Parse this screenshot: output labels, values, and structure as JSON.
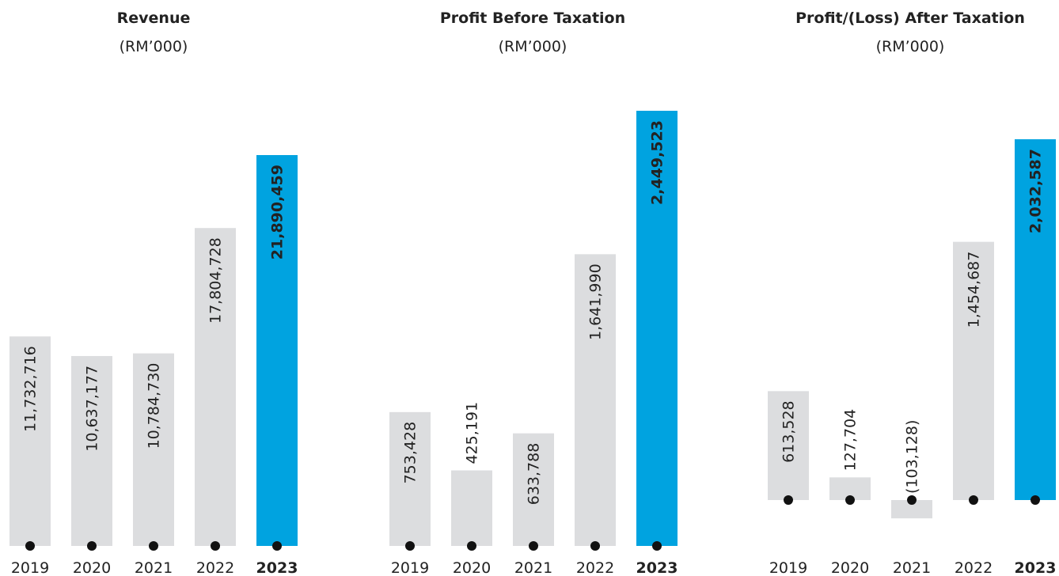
{
  "chart_data": [
    {
      "type": "bar",
      "title": "Revenue",
      "subtitle": "(RM’000)",
      "categories": [
        "2019",
        "2020",
        "2021",
        "2022",
        "2023"
      ],
      "values": [
        11732716,
        10637177,
        10784730,
        17804728,
        21890459
      ],
      "value_labels": [
        "11,732,716",
        "10,637,177",
        "10,784,730",
        "17,804,728",
        "21,890,459"
      ],
      "colors": [
        "#dcdddf",
        "#dcdddf",
        "#dcdddf",
        "#dcdddf",
        "#00a3e0"
      ]
    },
    {
      "type": "bar",
      "title": "Profit Before Taxation",
      "subtitle": "(RM’000)",
      "categories": [
        "2019",
        "2020",
        "2021",
        "2022",
        "2023"
      ],
      "values": [
        753428,
        425191,
        633788,
        1641990,
        2449523
      ],
      "value_labels": [
        "753,428",
        "425,191",
        "633,788",
        "1,641,990",
        "2,449,523"
      ],
      "colors": [
        "#dcdddf",
        "#dcdddf",
        "#dcdddf",
        "#dcdddf",
        "#00a3e0"
      ]
    },
    {
      "type": "bar",
      "title": "Profit/(Loss) After Taxation",
      "subtitle": "(RM’000)",
      "categories": [
        "2019",
        "2020",
        "2021",
        "2022",
        "2023"
      ],
      "values": [
        613528,
        127704,
        -103128,
        1454687,
        2032587
      ],
      "value_labels": [
        "613,528",
        "127,704",
        "(103,128)",
        "1,454,687",
        "2,032,587"
      ],
      "colors": [
        "#dcdddf",
        "#dcdddf",
        "#dcdddf",
        "#dcdddf",
        "#00a3e0"
      ]
    }
  ]
}
